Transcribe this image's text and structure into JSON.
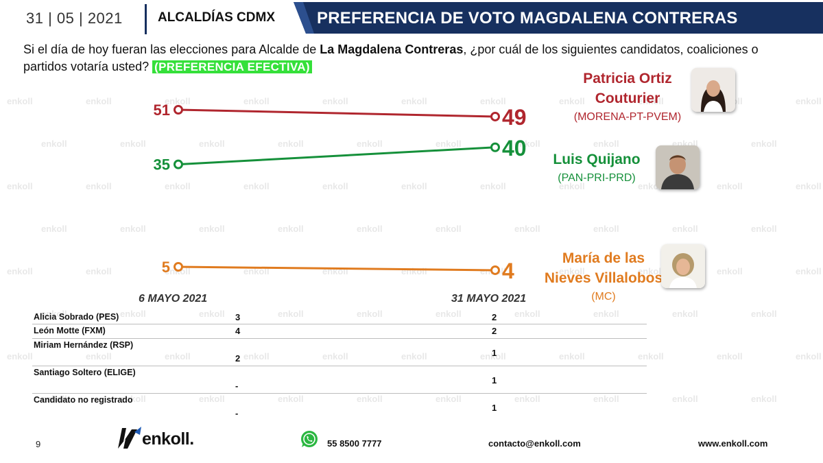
{
  "header": {
    "date": "31 | 05 | 2021",
    "section": "ALCALDÍAS CDMX",
    "title": "PREFERENCIA DE VOTO MAGDALENA CONTRERAS"
  },
  "question": {
    "part1": "Si el día de hoy fueran las elecciones para Alcalde de ",
    "bold": "La Magdalena Contreras",
    "part2": ", ¿por cuál de los siguientes candidatos, coaliciones o partidos votaría usted? ",
    "badge": "(PREFERENCIA EFECTIVA)"
  },
  "watermark_text": "enkoll",
  "chart_data": {
    "type": "line",
    "title": "PREFERENCIA DE VOTO MAGDALENA CONTRERAS",
    "categories": [
      "6  MAYO 2021",
      "31  MAYO 2021"
    ],
    "series": [
      {
        "name": "Patricia Ortiz Couturier",
        "party": "(MORENA-PT-PVEM)",
        "values": [
          51,
          49
        ],
        "color": "#b0262e"
      },
      {
        "name": "Luis Quijano",
        "party": "(PAN-PRI-PRD)",
        "values": [
          35,
          40
        ],
        "color": "#15903a"
      },
      {
        "name": "María de las Nieves Villalobos",
        "party": "(MC)",
        "values": [
          5,
          4
        ],
        "color": "#e07b1f"
      }
    ],
    "ylim": [
      0,
      60
    ]
  },
  "candidates": [
    {
      "name_line1": "Patricia Ortiz",
      "name_line2": "Couturier",
      "party": "(MORENA-PT-PVEM)"
    },
    {
      "name_line1": "Luis Quijano",
      "party": "(PAN-PRI-PRD)"
    },
    {
      "name_line1": "María de las",
      "name_line2": "Nieves Villalobos",
      "party": "(MC)"
    }
  ],
  "table": {
    "rows": [
      {
        "name": "Alicia Sobrado (PES)",
        "v1": "3",
        "v2": "2"
      },
      {
        "name": "León Motte (FXM)",
        "v1": "4",
        "v2": "2"
      },
      {
        "name": "Miriam Hernández (RSP)",
        "v1": "2",
        "v2": "1"
      },
      {
        "name": "Santiago Soltero (ELIGE)",
        "v1": "-",
        "v2": "1"
      },
      {
        "name": "Candidato no registrado",
        "v1": "-",
        "v2": "1"
      }
    ]
  },
  "footer": {
    "page": "9",
    "brand": "enkoll.",
    "phone": "55 8500 7777",
    "email": "contacto@enkoll.com",
    "web": "www.enkoll.com"
  },
  "colors": {
    "navy": "#17305f",
    "morena": "#b0262e",
    "pan": "#15903a",
    "mc": "#e07b1f",
    "badge": "#35e03a"
  }
}
